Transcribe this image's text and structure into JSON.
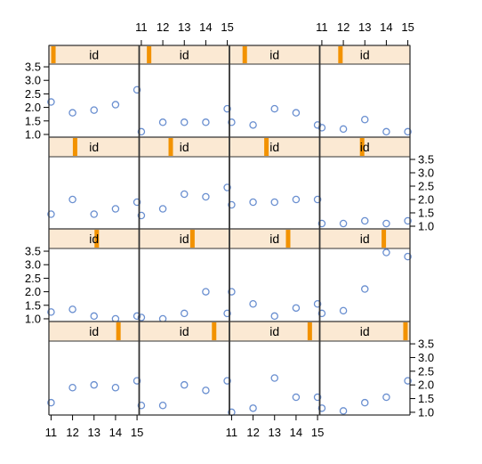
{
  "chart_data": {
    "type": "scatter",
    "layout": "lattice 4x4 trellis",
    "x_ticks": [
      11,
      12,
      13,
      14,
      15
    ],
    "y_ticks": [
      1.0,
      1.5,
      2.0,
      2.5,
      3.0,
      3.5
    ],
    "y_tick_labels": [
      "1.0",
      "1.5",
      "2.0",
      "2.5",
      "3.0",
      "3.5"
    ],
    "xlim": [
      10.9,
      15.1
    ],
    "ylim": [
      0.9,
      3.6
    ],
    "grid": false,
    "strip_label": "id",
    "panels": [
      {
        "row": 1,
        "col": 1,
        "strip_level": 1,
        "x": [
          11,
          12,
          13,
          14,
          15
        ],
        "y": [
          2.2,
          1.8,
          1.9,
          2.1,
          2.65
        ]
      },
      {
        "row": 1,
        "col": 2,
        "strip_level": 2,
        "x": [
          11,
          12,
          13,
          14,
          15
        ],
        "y": [
          1.1,
          1.45,
          1.45,
          1.45,
          1.95
        ]
      },
      {
        "row": 1,
        "col": 3,
        "strip_level": 3,
        "x": [
          11,
          12,
          13,
          14,
          15
        ],
        "y": [
          1.45,
          1.35,
          1.95,
          1.8,
          1.35
        ]
      },
      {
        "row": 1,
        "col": 4,
        "strip_level": 4,
        "x": [
          11,
          12,
          13,
          14,
          15
        ],
        "y": [
          1.25,
          1.2,
          1.55,
          1.1,
          1.1
        ]
      },
      {
        "row": 2,
        "col": 1,
        "strip_level": 5,
        "x": [
          11,
          12,
          13,
          14,
          15
        ],
        "y": [
          1.45,
          2.0,
          1.45,
          1.65,
          1.9
        ]
      },
      {
        "row": 2,
        "col": 2,
        "strip_level": 6,
        "x": [
          11,
          12,
          13,
          14,
          15
        ],
        "y": [
          1.4,
          1.65,
          2.2,
          2.1,
          2.45
        ]
      },
      {
        "row": 2,
        "col": 3,
        "strip_level": 7,
        "x": [
          11,
          12,
          13,
          14,
          15
        ],
        "y": [
          1.8,
          1.9,
          1.9,
          2.0,
          2.0
        ]
      },
      {
        "row": 2,
        "col": 4,
        "strip_level": 8,
        "x": [
          11,
          12,
          13,
          14,
          15
        ],
        "y": [
          1.1,
          1.1,
          1.2,
          1.1,
          1.2
        ]
      },
      {
        "row": 3,
        "col": 1,
        "strip_level": 9,
        "x": [
          11,
          12,
          13,
          14,
          15
        ],
        "y": [
          1.25,
          1.35,
          1.1,
          1.0,
          1.1
        ]
      },
      {
        "row": 3,
        "col": 2,
        "strip_level": 10,
        "x": [
          11,
          12,
          13,
          14,
          15
        ],
        "y": [
          1.05,
          1.0,
          1.2,
          2.0,
          1.2
        ]
      },
      {
        "row": 3,
        "col": 3,
        "strip_level": 11,
        "x": [
          11,
          12,
          13,
          14,
          15
        ],
        "y": [
          2.0,
          1.55,
          1.1,
          1.4,
          1.55
        ]
      },
      {
        "row": 3,
        "col": 4,
        "strip_level": 12,
        "x": [
          11,
          12,
          13,
          14,
          15
        ],
        "y": [
          1.2,
          1.3,
          2.1,
          3.45,
          3.3
        ]
      },
      {
        "row": 4,
        "col": 1,
        "strip_level": 13,
        "x": [
          11,
          12,
          13,
          14,
          15
        ],
        "y": [
          1.35,
          1.9,
          2.0,
          1.9,
          2.15
        ]
      },
      {
        "row": 4,
        "col": 2,
        "strip_level": 14,
        "x": [
          11,
          12,
          13,
          14,
          15
        ],
        "y": [
          1.25,
          1.25,
          2.0,
          1.8,
          2.15
        ]
      },
      {
        "row": 4,
        "col": 3,
        "strip_level": 15,
        "x": [
          11,
          12,
          13,
          14,
          15
        ],
        "y": [
          1.0,
          1.15,
          2.25,
          1.55,
          1.55
        ]
      },
      {
        "row": 4,
        "col": 4,
        "strip_level": 16,
        "x": [
          11,
          12,
          13,
          14,
          15
        ],
        "y": [
          1.15,
          1.05,
          1.35,
          1.55,
          2.15
        ]
      }
    ],
    "colors": {
      "point": "#6a8fd0",
      "strip_bg": "#fbe9d3",
      "strip_marker": "#f29200",
      "axis": "#000000",
      "panel_border": "#333333"
    }
  }
}
